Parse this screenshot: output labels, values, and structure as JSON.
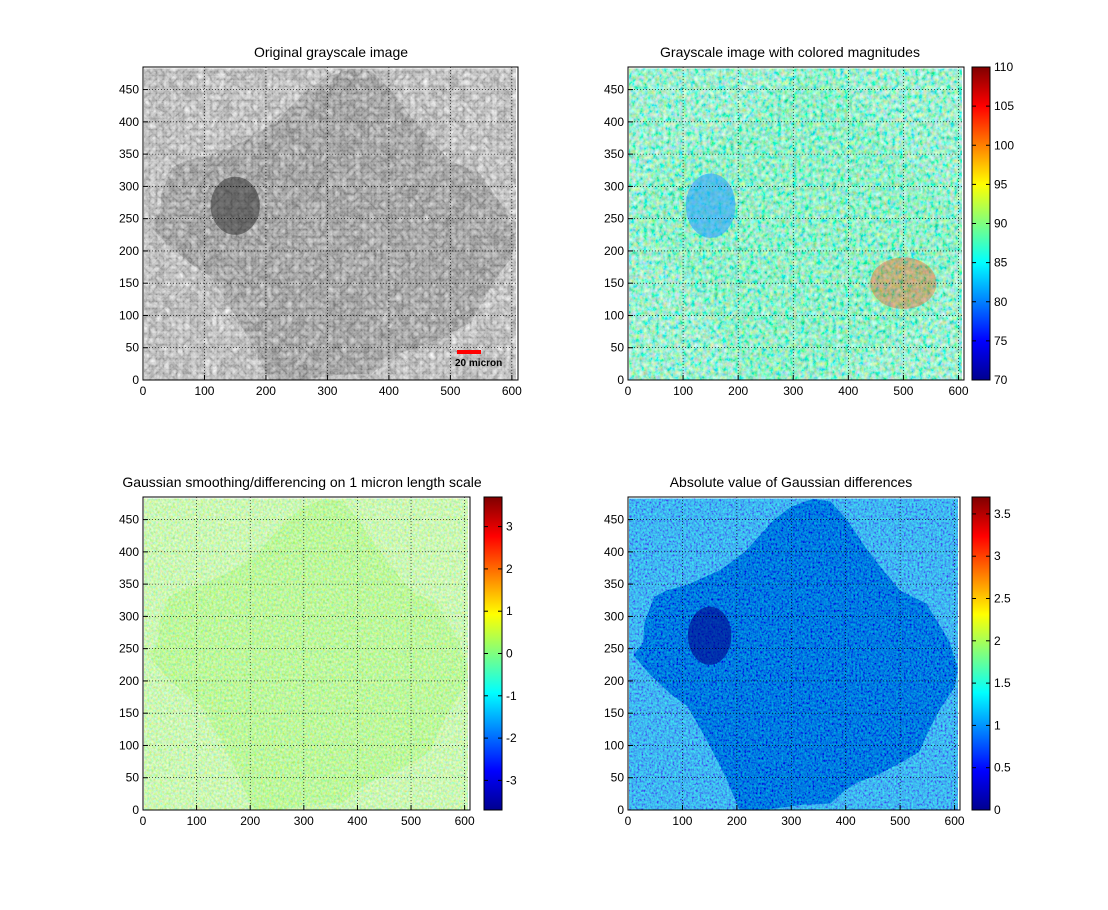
{
  "figure": {
    "panel_count": 4
  },
  "chart_data": [
    {
      "type": "heatmap",
      "title": "Original grayscale image",
      "colormap": "gray",
      "xlim": [
        0,
        610
      ],
      "ylim": [
        0,
        485
      ],
      "xticks": [
        0,
        100,
        200,
        300,
        400,
        500,
        600
      ],
      "yticks": [
        0,
        50,
        100,
        150,
        200,
        250,
        300,
        350,
        400,
        450
      ],
      "grid": true,
      "colorbar": null,
      "scale_bar": {
        "label": "20 micron",
        "color": "#ff0000"
      }
    },
    {
      "type": "heatmap",
      "title": "Grayscale image with colored magnitudes",
      "colormap": "jet",
      "xlim": [
        0,
        610
      ],
      "ylim": [
        0,
        485
      ],
      "xticks": [
        0,
        100,
        200,
        300,
        400,
        500,
        600
      ],
      "yticks": [
        0,
        50,
        100,
        150,
        200,
        250,
        300,
        350,
        400,
        450
      ],
      "grid": true,
      "colorbar": {
        "range": [
          70,
          110
        ],
        "ticks": [
          70,
          75,
          80,
          85,
          90,
          95,
          100,
          105,
          110
        ]
      }
    },
    {
      "type": "heatmap",
      "title": "Gaussian smoothing/differencing on 1 micron length scale",
      "colormap": "jet",
      "xlim": [
        0,
        610
      ],
      "ylim": [
        0,
        485
      ],
      "xticks": [
        0,
        100,
        200,
        300,
        400,
        500,
        600
      ],
      "yticks": [
        0,
        50,
        100,
        150,
        200,
        250,
        300,
        350,
        400,
        450
      ],
      "grid": true,
      "colorbar": {
        "range": [
          -3.7,
          3.7
        ],
        "ticks": [
          -3,
          -2,
          -1,
          0,
          1,
          2,
          3
        ]
      }
    },
    {
      "type": "heatmap",
      "title": "Absolute value of Gaussian differences",
      "colormap": "jet",
      "xlim": [
        0,
        610
      ],
      "ylim": [
        0,
        485
      ],
      "xticks": [
        0,
        100,
        200,
        300,
        400,
        500,
        600
      ],
      "yticks": [
        0,
        50,
        100,
        150,
        200,
        250,
        300,
        350,
        400,
        450
      ],
      "grid": true,
      "colorbar": {
        "range": [
          0,
          3.7
        ],
        "ticks": [
          0,
          0.5,
          1,
          1.5,
          2,
          2.5,
          3,
          3.5
        ]
      }
    }
  ]
}
